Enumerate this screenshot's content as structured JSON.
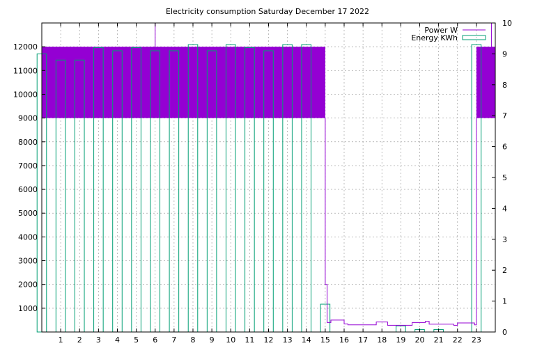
{
  "chart_data": {
    "type": "bar",
    "title": "Electricity consumption Saturday December 17 2022",
    "legend": {
      "placement": "top-right",
      "entries": [
        {
          "label": "Power W",
          "color": "#9400d3",
          "style": "line"
        },
        {
          "label": "Energy KWh",
          "color": "#009e73",
          "style": "box"
        }
      ]
    },
    "grid": true,
    "x_axis": {
      "range": [
        0,
        24
      ],
      "ticks": [
        1,
        2,
        3,
        4,
        5,
        6,
        7,
        8,
        9,
        10,
        11,
        12,
        13,
        14,
        15,
        16,
        17,
        18,
        19,
        20,
        21,
        22,
        23
      ]
    },
    "y_axis_left": {
      "label": "Power W",
      "range": [
        0,
        13000
      ],
      "ticks": [
        1000,
        2000,
        3000,
        4000,
        5000,
        6000,
        7000,
        8000,
        9000,
        10000,
        11000,
        12000
      ]
    },
    "y_axis_right": {
      "label": "Energy KWh",
      "range": [
        0,
        10
      ],
      "ticks": [
        0,
        1,
        2,
        3,
        4,
        5,
        6,
        7,
        8,
        9,
        10
      ]
    },
    "series": [
      {
        "name": "Energy KWh",
        "axis": "right",
        "color": "#009e73",
        "type": "bar",
        "bars": [
          {
            "x": 0.0,
            "value": 9.0
          },
          {
            "x": 1.0,
            "value": 8.8
          },
          {
            "x": 2.0,
            "value": 8.8
          },
          {
            "x": 3.0,
            "value": 9.2
          },
          {
            "x": 4.0,
            "value": 9.1
          },
          {
            "x": 5.0,
            "value": 9.2
          },
          {
            "x": 6.0,
            "value": 9.1
          },
          {
            "x": 7.0,
            "value": 9.1
          },
          {
            "x": 8.0,
            "value": 9.3
          },
          {
            "x": 9.0,
            "value": 9.1
          },
          {
            "x": 10.0,
            "value": 9.3
          },
          {
            "x": 11.0,
            "value": 9.2
          },
          {
            "x": 12.0,
            "value": 9.1
          },
          {
            "x": 13.0,
            "value": 9.3
          },
          {
            "x": 14.0,
            "value": 9.3
          },
          {
            "x": 15.0,
            "value": 0.9
          },
          {
            "x": 19.0,
            "value": 0.2
          },
          {
            "x": 20.0,
            "value": 0.08
          },
          {
            "x": 21.0,
            "value": 0.08
          },
          {
            "x": 23.0,
            "value": 9.3
          }
        ]
      },
      {
        "name": "Power W",
        "axis": "left",
        "color": "#9400d3",
        "type": "line",
        "dense_band": [
          {
            "x_from": 0.0,
            "x_to": 15.0,
            "low": 9000,
            "high": 12000
          },
          {
            "x_from": 23.0,
            "x_to": 24.0,
            "low": 9000,
            "high": 12000
          }
        ],
        "spikes": [
          {
            "x": 6.0,
            "value": 13000
          },
          {
            "x": 23.8,
            "value": 13000
          }
        ],
        "steps": [
          {
            "x": 15.0,
            "y": 2000
          },
          {
            "x": 15.1,
            "y": 400
          },
          {
            "x": 15.3,
            "y": 500
          },
          {
            "x": 16.0,
            "y": 340
          },
          {
            "x": 16.2,
            "y": 300
          },
          {
            "x": 17.7,
            "y": 420
          },
          {
            "x": 18.3,
            "y": 280
          },
          {
            "x": 19.6,
            "y": 400
          },
          {
            "x": 20.3,
            "y": 450
          },
          {
            "x": 20.5,
            "y": 330
          },
          {
            "x": 21.8,
            "y": 280
          },
          {
            "x": 22.0,
            "y": 380
          },
          {
            "x": 22.9,
            "y": 300
          },
          {
            "x": 23.0,
            "y": 9000
          }
        ]
      }
    ]
  }
}
